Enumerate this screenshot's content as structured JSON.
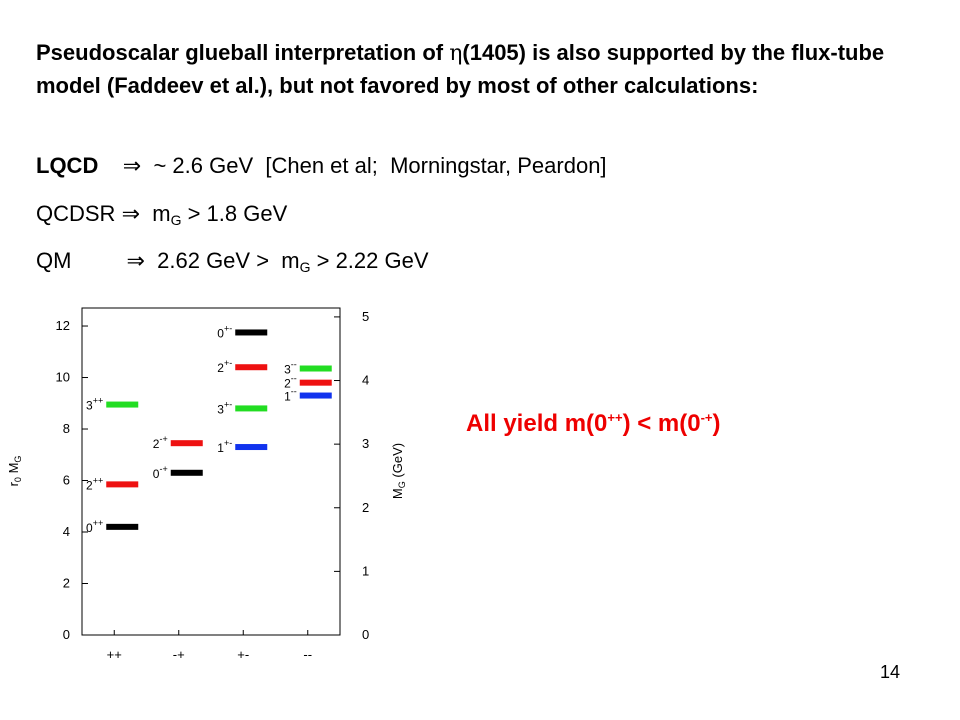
{
  "intro": {
    "text_before": "Pseudoscalar glueball interpretation of ",
    "eta_symbol": "η",
    "text_after": "(1405) is also supported by the flux-tube model (Faddeev et al.), but not favored by most of other calculations:"
  },
  "predictions": [
    {
      "method": "LQCD",
      "arrow": "⇒",
      "text": "~ 2.6 GeV  [Chen et al;  Morningstar, Peardon]"
    },
    {
      "method": "QCDSR",
      "arrow": "⇒",
      "pre": "m",
      "sub": "G",
      "post": " > 1.8 GeV"
    },
    {
      "method": "QM",
      "arrow": "⇒",
      "pre": "2.62 GeV >  m",
      "sub": "G",
      "post": " > 2.22 GeV"
    }
  ],
  "conclusion": {
    "text": "All yield m(0",
    "sup1": "++",
    "mid": ") < m(0",
    "sup2": "-+",
    "end": ")",
    "color": "#ee0000"
  },
  "page_number": "14",
  "chart_data": {
    "type": "level-diagram",
    "ylabel_left": "r₀ M_G",
    "ylabel_right": "M_G (GeV)",
    "left_ticks": [
      "0",
      "2",
      "4",
      "6",
      "8",
      "10",
      "12"
    ],
    "right_ticks": [
      "0",
      "1",
      "2",
      "3",
      "4",
      "5"
    ],
    "ylim_left": [
      0,
      12.7
    ],
    "ylim_right": [
      0,
      5.14
    ],
    "categories": [
      "++",
      "-+",
      "+-",
      "--"
    ],
    "levels": [
      {
        "category": "++",
        "label": "0++",
        "value": 4.2,
        "color": "#000000"
      },
      {
        "category": "++",
        "label": "2++",
        "value": 5.85,
        "color": "#ee1111"
      },
      {
        "category": "++",
        "label": "3++",
        "value": 8.95,
        "color": "#22dd22"
      },
      {
        "category": "-+",
        "label": "0-+",
        "value": 6.3,
        "color": "#000000"
      },
      {
        "category": "-+",
        "label": "2-+",
        "value": 7.45,
        "color": "#ee1111"
      },
      {
        "category": "+-",
        "label": "1+-",
        "value": 7.3,
        "color": "#1133ee"
      },
      {
        "category": "+-",
        "label": "3+-",
        "value": 8.8,
        "color": "#22dd22"
      },
      {
        "category": "+-",
        "label": "2+-",
        "value": 10.4,
        "color": "#ee1111"
      },
      {
        "category": "+-",
        "label": "0+-",
        "value": 11.75,
        "color": "#000000"
      },
      {
        "category": "--",
        "label": "1--",
        "value": 9.3,
        "color": "#1133ee"
      },
      {
        "category": "--",
        "label": "2--",
        "value": 9.8,
        "color": "#ee1111"
      },
      {
        "category": "--",
        "label": "3--",
        "value": 10.35,
        "color": "#22dd22"
      }
    ]
  }
}
